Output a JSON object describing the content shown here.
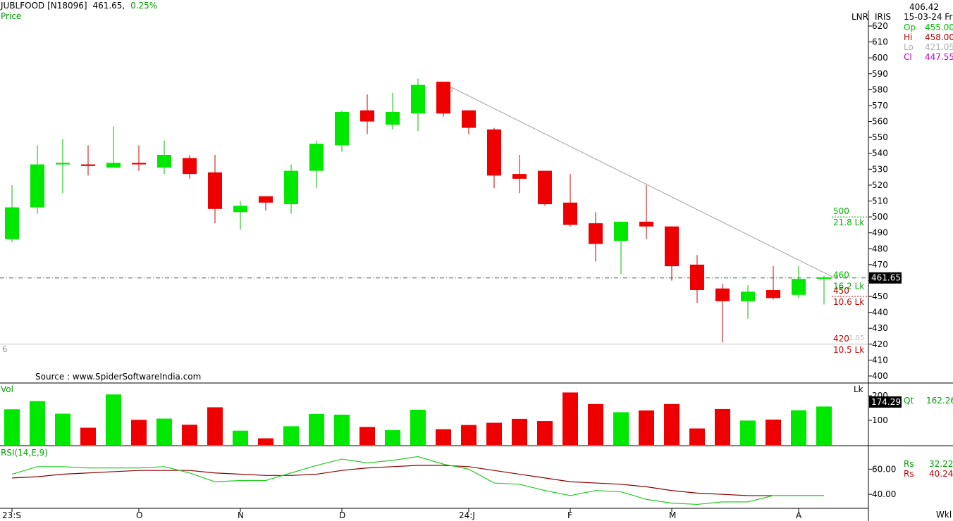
{
  "header": {
    "symbol": "JUBLFOOD [N18096]",
    "last": "461.65,",
    "change": "0.25%",
    "series_label": "Price"
  },
  "right_panel": {
    "top_value": "406.42",
    "date": "15-03-24 Fri",
    "scale_labels": [
      "LNR",
      "IRIS"
    ],
    "ohlc": [
      {
        "label": "Op",
        "value": "455.00",
        "color": "#00c000"
      },
      {
        "label": "Hi",
        "value": "458.00",
        "color": "#c00000"
      },
      {
        "label": "Lo",
        "value": "421.05",
        "color": "#b0b0b0"
      },
      {
        "label": "Cl",
        "value": "447.55",
        "color": "#c000c0"
      }
    ],
    "qt_label": "Qt",
    "qt_value": "162.26",
    "rs_rows": [
      {
        "label": "Rs",
        "value": "32.22",
        "color": "#00a000"
      },
      {
        "label": "Rs",
        "value": "40.24",
        "color": "#c00000"
      }
    ],
    "vol_unit": "Lk",
    "period": "Wkl"
  },
  "source_text": "Source : www.SpiderSoftwareIndia.com",
  "corner_digit": "6",
  "chart_data": {
    "type": "candlestick",
    "price_axis": {
      "ticks": [
        620,
        610,
        600,
        590,
        580,
        570,
        560,
        550,
        540,
        530,
        520,
        510,
        500,
        490,
        480,
        470,
        460,
        450,
        440,
        430,
        420,
        410,
        400
      ],
      "current_price": "461.65",
      "ylim": [
        397,
        627
      ]
    },
    "candles": [
      {
        "o": 486,
        "h": 520,
        "l": 484,
        "c": 506
      },
      {
        "o": 506,
        "h": 545,
        "l": 502,
        "c": 533
      },
      {
        "o": 533,
        "h": 549,
        "l": 515,
        "c": 534
      },
      {
        "o": 533,
        "h": 545,
        "l": 526,
        "c": 532
      },
      {
        "o": 531,
        "h": 557,
        "l": 531,
        "c": 534
      },
      {
        "o": 534,
        "h": 545,
        "l": 529,
        "c": 533
      },
      {
        "o": 531,
        "h": 548,
        "l": 527,
        "c": 539
      },
      {
        "o": 537,
        "h": 539,
        "l": 524,
        "c": 527
      },
      {
        "o": 528,
        "h": 539,
        "l": 496,
        "c": 505
      },
      {
        "o": 503,
        "h": 510,
        "l": 492,
        "c": 507
      },
      {
        "o": 513,
        "h": 513,
        "l": 504,
        "c": 509
      },
      {
        "o": 508,
        "h": 533,
        "l": 502,
        "c": 529
      },
      {
        "o": 529,
        "h": 548,
        "l": 518,
        "c": 546
      },
      {
        "o": 545,
        "h": 567,
        "l": 541,
        "c": 566
      },
      {
        "o": 567,
        "h": 577,
        "l": 552,
        "c": 560
      },
      {
        "o": 558,
        "h": 578,
        "l": 555,
        "c": 566
      },
      {
        "o": 565,
        "h": 587,
        "l": 554,
        "c": 583
      },
      {
        "o": 585,
        "h": 585,
        "l": 563,
        "c": 565
      },
      {
        "o": 567,
        "h": 567,
        "l": 552,
        "c": 556
      },
      {
        "o": 555,
        "h": 556,
        "l": 518,
        "c": 526
      },
      {
        "o": 527,
        "h": 539,
        "l": 515,
        "c": 524
      },
      {
        "o": 529,
        "h": 529,
        "l": 507,
        "c": 508
      },
      {
        "o": 509,
        "h": 527,
        "l": 494,
        "c": 495
      },
      {
        "o": 496,
        "h": 503,
        "l": 472,
        "c": 483
      },
      {
        "o": 485,
        "h": 497,
        "l": 464,
        "c": 497
      },
      {
        "o": 497,
        "h": 520,
        "l": 486,
        "c": 494
      },
      {
        "o": 494,
        "h": 494,
        "l": 460,
        "c": 469
      },
      {
        "o": 470,
        "h": 476,
        "l": 446,
        "c": 454
      },
      {
        "o": 455,
        "h": 458,
        "l": 421,
        "c": 447
      },
      {
        "o": 447,
        "h": 457,
        "l": 436,
        "c": 453
      },
      {
        "o": 454,
        "h": 469,
        "l": 448,
        "c": 449
      },
      {
        "o": 451,
        "h": 469,
        "l": 449,
        "c": 461
      },
      {
        "o": 461,
        "h": 463,
        "l": 445,
        "c": 462
      }
    ],
    "trendline": {
      "from_index": 17,
      "from_price": 584,
      "to_index": 33,
      "to_price": 461
    },
    "levels": [
      {
        "price": 500,
        "label": "500",
        "sub": "21.8 Lk",
        "color": "#00b000",
        "dash": true
      },
      {
        "price": 460,
        "label": "460",
        "sub": "16.2 Lk",
        "color": "#00b000",
        "dash": false
      },
      {
        "price": 450,
        "label": "450",
        "sub": "10.6 Lk",
        "color": "#c00000",
        "dash": true
      },
      {
        "price": 420,
        "label": "420",
        "sub": "10.5 Lk",
        "color": "#c00000",
        "dash": false
      }
    ],
    "small_label_1": "5",
    "small_label_2": "1.05",
    "volume": {
      "label": "Vol",
      "ticks": [
        {
          "v": 200,
          "t": "200"
        },
        {
          "v": 100,
          "t": "100"
        }
      ],
      "current": "174.29",
      "ymax": 240,
      "values": [
        145,
        178,
        127,
        70,
        205,
        102,
        107,
        82,
        153,
        58,
        27,
        76,
        126,
        123,
        73,
        60,
        143,
        64,
        81,
        90,
        106,
        97,
        213,
        166,
        133,
        140,
        166,
        67,
        146,
        99,
        103,
        141,
        156
      ]
    },
    "rsi": {
      "label": "RSI(14,E,9)",
      "ticks": [
        {
          "v": 60,
          "t": "60.00"
        },
        {
          "v": 40,
          "t": "40.00"
        }
      ],
      "ylim": [
        30,
        77
      ],
      "rsi_line": [
        56,
        62,
        62,
        61,
        61,
        61,
        62,
        57,
        50,
        51,
        51,
        57,
        63,
        68,
        65,
        67,
        70,
        64,
        60,
        49,
        48,
        43,
        39,
        43,
        42,
        36,
        33,
        32,
        34,
        34,
        39,
        39,
        39
      ],
      "signal_line": [
        53,
        54,
        56,
        57,
        58,
        59,
        59,
        59,
        57,
        56,
        55,
        55,
        56,
        59,
        61,
        62,
        63,
        63,
        62,
        59,
        56,
        53,
        50,
        49,
        48,
        46,
        43,
        41,
        40,
        39,
        39,
        39,
        39
      ]
    },
    "x_labels": [
      {
        "i": 0,
        "t": "23:S"
      },
      {
        "i": 5,
        "t": "O"
      },
      {
        "i": 9,
        "t": "N"
      },
      {
        "i": 13,
        "t": "D"
      },
      {
        "i": 18,
        "t": "24:J"
      },
      {
        "i": 22,
        "t": "F"
      },
      {
        "i": 26,
        "t": "M"
      },
      {
        "i": 31,
        "t": "A"
      }
    ]
  }
}
